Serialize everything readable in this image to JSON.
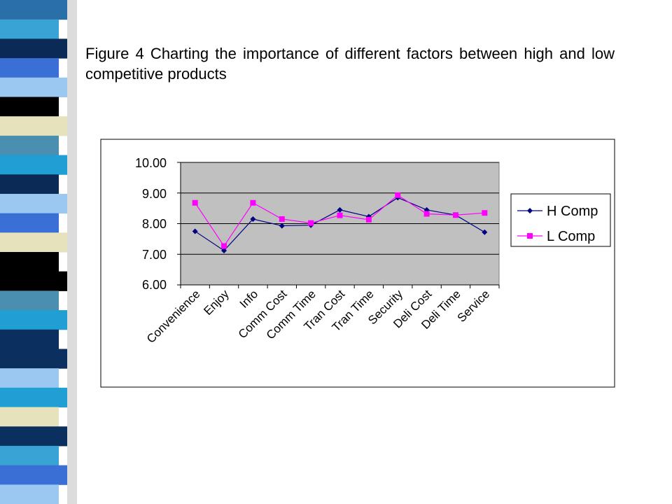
{
  "caption": "Figure 4 Charting the importance of different factors between high and low competitive products",
  "decor": {
    "strip_colors": [
      "#2a6fa8",
      "#3aa3d6",
      "#0b2a55",
      "#3a70d6",
      "#9bc8f0",
      "#000000",
      "#e6e3bc",
      "#4a8fb0",
      "#1f9fd4",
      "#0b2a55",
      "#9bc8f0",
      "#3a70d6",
      "#e6e3bc",
      "#000000",
      "#000000",
      "#4a8fb0",
      "#1f9fd4",
      "#0b3060",
      "#0b3060",
      "#9bc8f0",
      "#1f9fd4",
      "#e6e3bc",
      "#0b3060",
      "#3aa3d6",
      "#3a70d6",
      "#9bc8f0"
    ]
  },
  "chart_data": {
    "type": "line",
    "categories": [
      "Convenience",
      "Enjoy",
      "Info",
      "Comm Cost",
      "Comm Time",
      "Tran Cost",
      "Tran Time",
      "Security",
      "Deli Cost",
      "Deli Time",
      "Service"
    ],
    "series": [
      {
        "name": "H Comp",
        "color": "#000080",
        "marker": "diamond",
        "values": [
          7.75,
          7.12,
          8.15,
          7.93,
          7.95,
          8.45,
          8.23,
          8.85,
          8.45,
          8.28,
          7.72
        ]
      },
      {
        "name": "L Comp",
        "color": "#ff00ff",
        "marker": "square",
        "values": [
          8.68,
          7.27,
          8.68,
          8.15,
          8.02,
          8.27,
          8.13,
          8.93,
          8.32,
          8.28,
          8.35
        ]
      }
    ],
    "yticks": [
      "10.00",
      "9.00",
      "8.00",
      "7.00",
      "6.00"
    ],
    "ylim": [
      6,
      10
    ],
    "grid": true,
    "legend": "right",
    "plot_background": "#c0c0c0"
  }
}
